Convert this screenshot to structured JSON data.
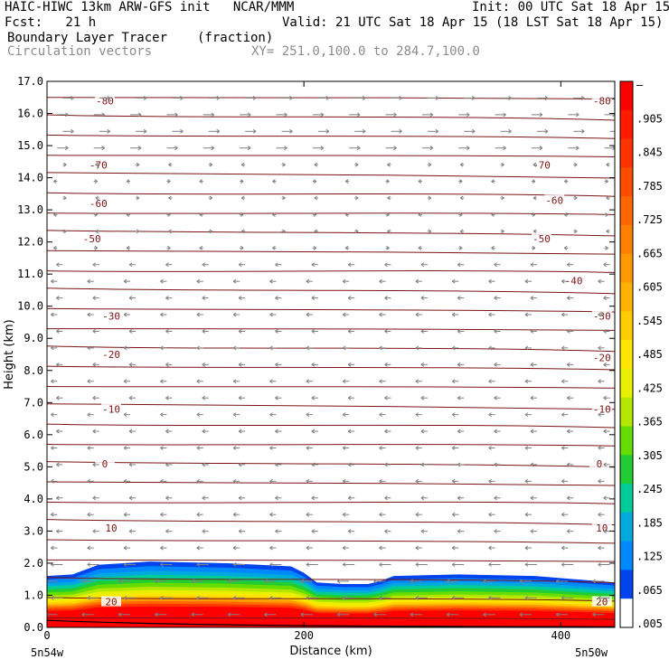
{
  "header": {
    "title_left": "HAIC-HIWC 13km ARW-GFS init   NCAR/MMM",
    "init": "Init: 00 UTC Sat 18 Apr 15",
    "fcst": "Fcst:   21 h",
    "valid": "Valid: 21 UTC Sat 18 Apr 15 (18 LST Sat 18 Apr 15)",
    "field": "Boundary Layer Tracer",
    "units": "(fraction)",
    "vectors": "Circulation vectors",
    "xy": "XY= 251.0,100.0 to 284.7,100.0"
  },
  "chart_data": {
    "type": "heatmap",
    "ylabel": "Height (km)",
    "xlabel": "Distance (km)",
    "x_end_labels": [
      "5n54w",
      "5n50w"
    ],
    "xlim": [
      0,
      442
    ],
    "ylim": [
      0,
      17
    ],
    "x_ticks": [
      0,
      200,
      400
    ],
    "y_ticks": [
      "0.0",
      "1.0",
      "2.0",
      "3.0",
      "4.0",
      "5.0",
      "6.0",
      "7.0",
      "8.0",
      "9.0",
      "10.0",
      "11.0",
      "12.0",
      "13.0",
      "14.0",
      "15.0",
      "16.0",
      "17.0"
    ],
    "colorbar": {
      "labels": [
        "–",
        ".905",
        ".845",
        ".785",
        ".725",
        ".665",
        ".605",
        ".545",
        ".485",
        ".425",
        ".365",
        ".305",
        ".245",
        ".185",
        ".125",
        ".065",
        ".005"
      ],
      "colors": [
        "#ff0000",
        "#ff1a00",
        "#ff3300",
        "#ff4d00",
        "#ff6600",
        "#ff8000",
        "#ff9900",
        "#ffb300",
        "#ffcc00",
        "#ffe600",
        "#e6f000",
        "#b3e600",
        "#66dd00",
        "#22cc33",
        "#00cc99",
        "#00aadd",
        "#0088ff",
        "#0044ee",
        "#ffffff"
      ]
    },
    "tracer_top_km": [
      {
        "x": 0,
        "y": 1.6
      },
      {
        "x": 20,
        "y": 1.65
      },
      {
        "x": 40,
        "y": 1.95
      },
      {
        "x": 80,
        "y": 2.05
      },
      {
        "x": 140,
        "y": 2.0
      },
      {
        "x": 190,
        "y": 1.9
      },
      {
        "x": 200,
        "y": 1.7
      },
      {
        "x": 210,
        "y": 1.4
      },
      {
        "x": 230,
        "y": 1.35
      },
      {
        "x": 250,
        "y": 1.35
      },
      {
        "x": 260,
        "y": 1.45
      },
      {
        "x": 270,
        "y": 1.6
      },
      {
        "x": 320,
        "y": 1.65
      },
      {
        "x": 380,
        "y": 1.6
      },
      {
        "x": 442,
        "y": 1.4
      }
    ],
    "temperature_contours": [
      {
        "level": "-80",
        "labels_at": [
          {
            "x": 45,
            "y": 16.4
          },
          {
            "x": 432,
            "y": 16.4
          }
        ]
      },
      {
        "level": "-70",
        "labels_at": [
          {
            "x": 40,
            "y": 14.4
          },
          {
            "x": 385,
            "y": 14.4
          }
        ]
      },
      {
        "level": "-60",
        "labels_at": [
          {
            "x": 40,
            "y": 13.2
          },
          {
            "x": 395,
            "y": 13.3
          }
        ]
      },
      {
        "level": "-50",
        "labels_at": [
          {
            "x": 35,
            "y": 12.1
          },
          {
            "x": 385,
            "y": 12.1
          }
        ]
      },
      {
        "level": "-40",
        "labels_at": [
          {
            "x": 410,
            "y": 10.8
          }
        ]
      },
      {
        "level": "-30",
        "labels_at": [
          {
            "x": 50,
            "y": 9.7
          },
          {
            "x": 432,
            "y": 9.7
          }
        ]
      },
      {
        "level": "-20",
        "labels_at": [
          {
            "x": 50,
            "y": 8.5
          },
          {
            "x": 432,
            "y": 8.4
          }
        ]
      },
      {
        "level": "-10",
        "labels_at": [
          {
            "x": 50,
            "y": 6.8
          },
          {
            "x": 432,
            "y": 6.8
          }
        ]
      },
      {
        "level": "0",
        "labels_at": [
          {
            "x": 45,
            "y": 5.1
          },
          {
            "x": 430,
            "y": 5.1
          }
        ]
      },
      {
        "level": "10",
        "labels_at": [
          {
            "x": 50,
            "y": 3.1
          },
          {
            "x": 432,
            "y": 3.1
          }
        ]
      },
      {
        "level": "20",
        "labels_at": [
          {
            "x": 50,
            "y": 0.8
          },
          {
            "x": 432,
            "y": 0.8
          }
        ]
      }
    ]
  }
}
